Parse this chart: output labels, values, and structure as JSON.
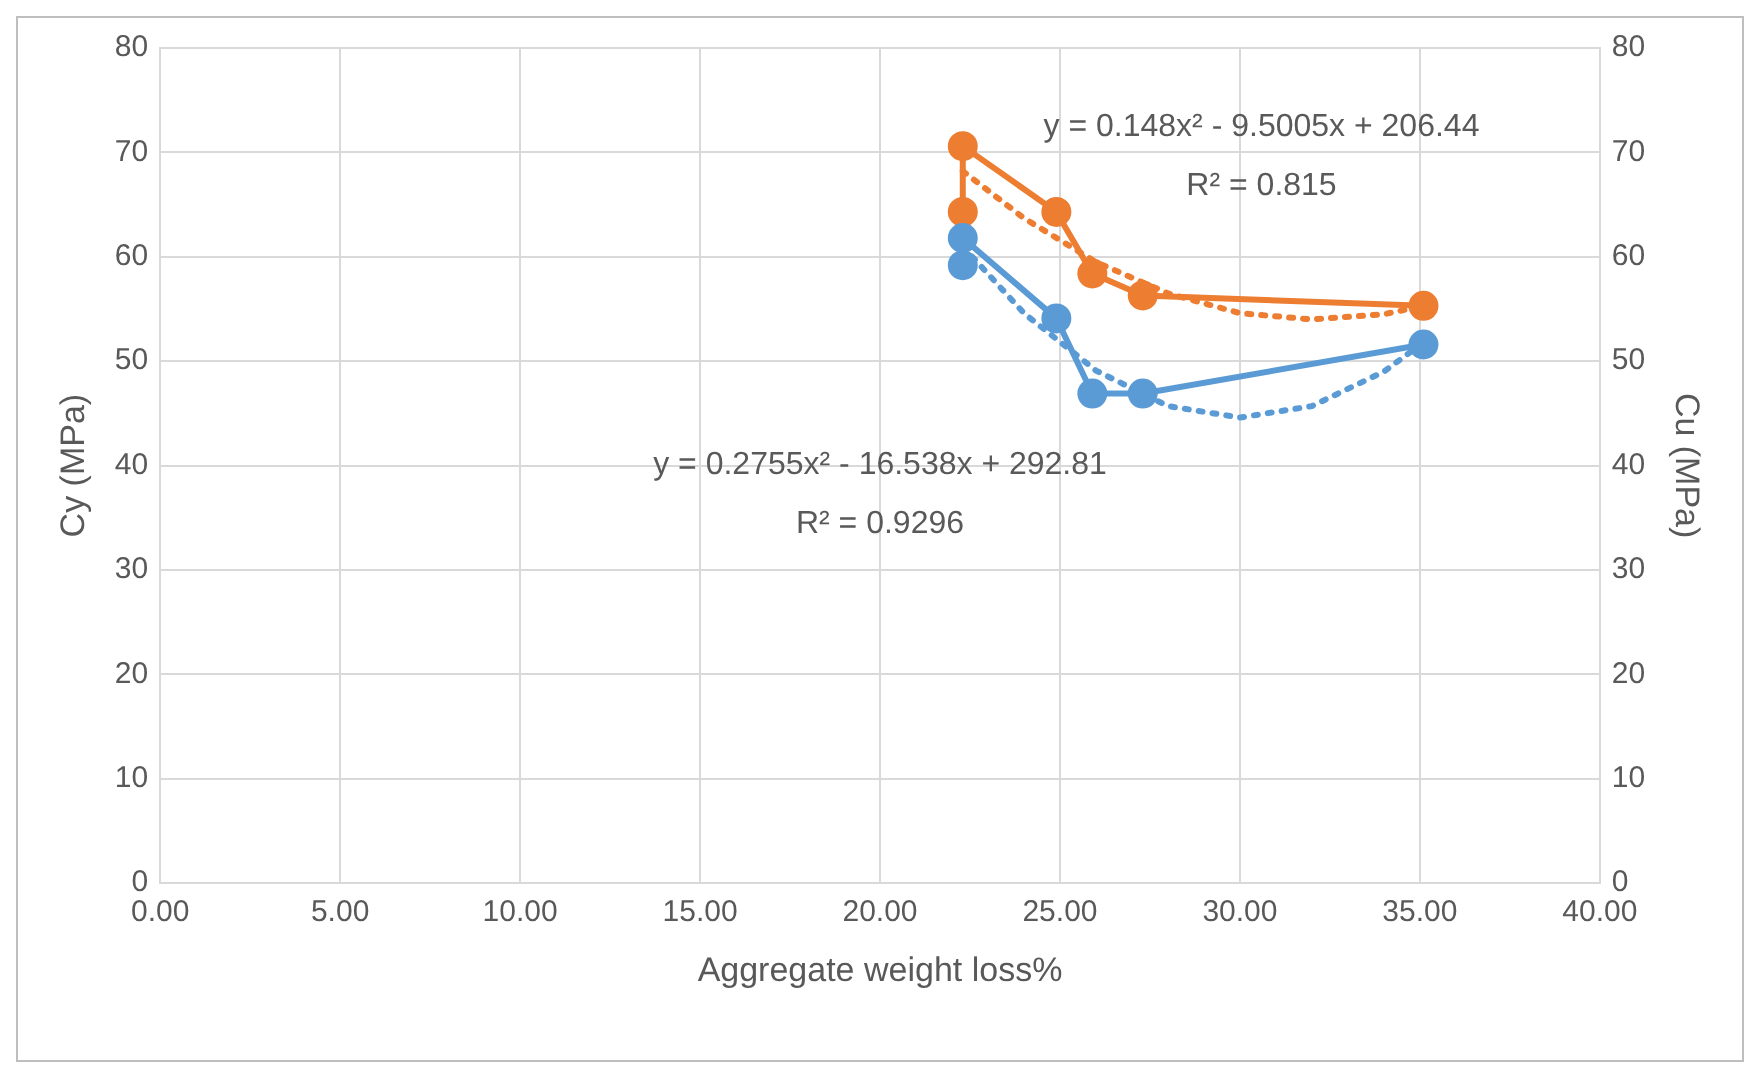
{
  "chart_data": {
    "type": "line",
    "xlabel": "Aggregate weight loss%",
    "ylabel": "Cy (MPa)",
    "y2label": "Cu (MPa)",
    "xlim": [
      0,
      40
    ],
    "xticks": [
      {
        "value": 0,
        "label": "0.00"
      },
      {
        "value": 5,
        "label": "5.00"
      },
      {
        "value": 10,
        "label": "10.00"
      },
      {
        "value": 15,
        "label": "15.00"
      },
      {
        "value": 20,
        "label": "20.00"
      },
      {
        "value": 25,
        "label": "25.00"
      },
      {
        "value": 30,
        "label": "30.00"
      },
      {
        "value": 35,
        "label": "35.00"
      },
      {
        "value": 40,
        "label": "40.00"
      }
    ],
    "ylim": [
      0,
      80
    ],
    "yticks": [
      0,
      10,
      20,
      30,
      40,
      50,
      60,
      70,
      80
    ],
    "y2lim": [
      0,
      80
    ],
    "y2ticks": [
      0,
      10,
      20,
      30,
      40,
      50,
      60,
      70,
      80
    ],
    "grid": true,
    "legend": false,
    "marker": "circle",
    "line_style": "solid",
    "series": [
      {
        "color": "#5b9bd5",
        "x": [
          22.3,
          22.3,
          24.9,
          25.9,
          27.3,
          35.1
        ],
        "values": [
          59.2,
          61.8,
          54.1,
          46.9,
          46.9,
          51.6
        ]
      },
      {
        "color": "#ed7d31",
        "x": [
          22.3,
          22.3,
          24.9,
          25.9,
          27.3,
          35.1
        ],
        "values": [
          64.3,
          70.6,
          64.3,
          58.4,
          56.3,
          55.3
        ]
      },
      {
        "color": "#5b9bd5",
        "marker": "none",
        "line_style": "dotted",
        "x": [
          22.3,
          24,
          26,
          28,
          30,
          32,
          34,
          35.1
        ],
        "values": [
          61.0,
          54.6,
          49.1,
          45.7,
          44.6,
          45.7,
          49.0,
          51.8
        ]
      },
      {
        "color": "#ed7d31",
        "marker": "none",
        "line_style": "dotted",
        "x": [
          22.3,
          24,
          26,
          28,
          30,
          32,
          34,
          35.1
        ],
        "values": [
          68.2,
          63.7,
          59.5,
          56.5,
          54.6,
          54.0,
          54.5,
          55.3
        ]
      }
    ],
    "annotations": [
      "y = 0.148x² - 9.5005x + 206.44",
      "R² = 0.815",
      "y = 0.2755x² - 16.538x + 292.81",
      "R² = 0.9296"
    ]
  }
}
